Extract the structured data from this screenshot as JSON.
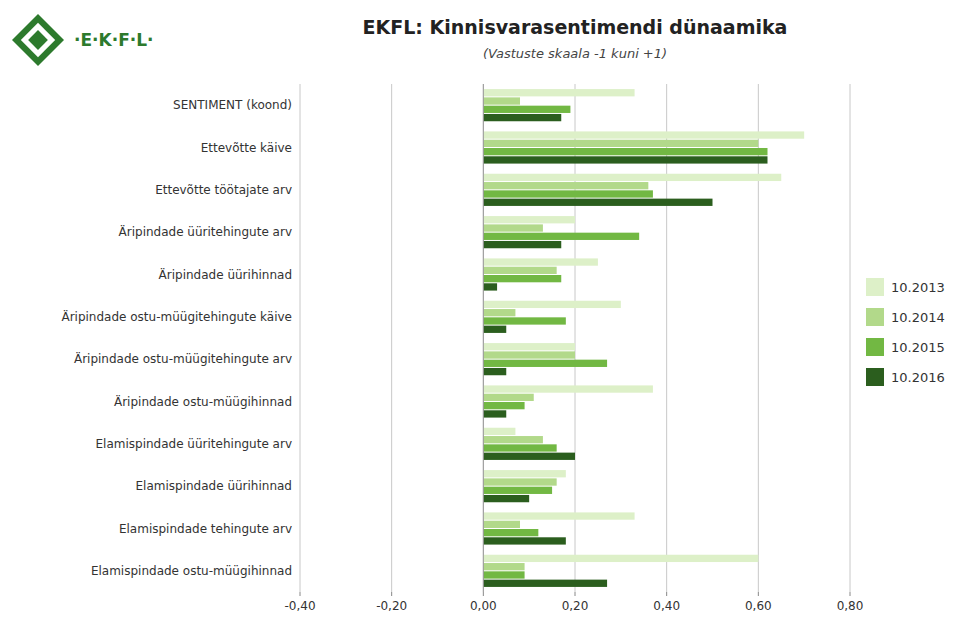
{
  "chart_data": {
    "type": "bar",
    "orientation": "horizontal",
    "title": "EKFL: Kinnisvarasentimendi dünaamika",
    "subtitle": "(Vastuste skaala -1 kuni +1)",
    "annotations": [
      "·E·K·F·L·"
    ],
    "categories": [
      "SENTIMENT (koond)",
      "Ettevõtte käive",
      "Ettevõtte töötajate arv",
      "Äripindade üüritehingute arv",
      "Äripindade üürihinnad",
      "Äripindade ostu-müügitehingute käive",
      "Äripindade ostu-müügitehingute arv",
      "Äripindade ostu-müügihinnad",
      "Elamispindade üüritehingute arv",
      "Elamispindade üürihinnad",
      "Elamispindade tehingute arv",
      "Elamispindade ostu-müügihinnad"
    ],
    "series": [
      {
        "name": "10.2013",
        "color": "#ddf0c8",
        "values": [
          0.33,
          0.7,
          0.65,
          0.2,
          0.25,
          0.3,
          0.2,
          0.37,
          0.07,
          0.18,
          0.33,
          0.6
        ]
      },
      {
        "name": "10.2014",
        "color": "#b2d98a",
        "values": [
          0.08,
          0.6,
          0.36,
          0.13,
          0.16,
          0.07,
          0.2,
          0.11,
          0.13,
          0.16,
          0.08,
          0.09
        ]
      },
      {
        "name": "10.2015",
        "color": "#72b843",
        "values": [
          0.19,
          0.62,
          0.37,
          0.34,
          0.17,
          0.18,
          0.27,
          0.09,
          0.16,
          0.15,
          0.12,
          0.09
        ]
      },
      {
        "name": "10.2016",
        "color": "#2b5e1e",
        "values": [
          0.17,
          0.62,
          0.5,
          0.17,
          0.03,
          0.05,
          0.05,
          0.05,
          0.2,
          0.1,
          0.18,
          0.27
        ]
      }
    ],
    "xlim": [
      -0.4,
      0.8
    ],
    "xticks": [
      {
        "value": -0.4,
        "label": "-0,40"
      },
      {
        "value": -0.2,
        "label": "-0,20"
      },
      {
        "value": 0.0,
        "label": "0,00"
      },
      {
        "value": 0.2,
        "label": "0,20"
      },
      {
        "value": 0.4,
        "label": "0,40"
      },
      {
        "value": 0.6,
        "label": "0,60"
      },
      {
        "value": 0.8,
        "label": "0,80"
      }
    ],
    "grid": true,
    "legend": "right"
  }
}
